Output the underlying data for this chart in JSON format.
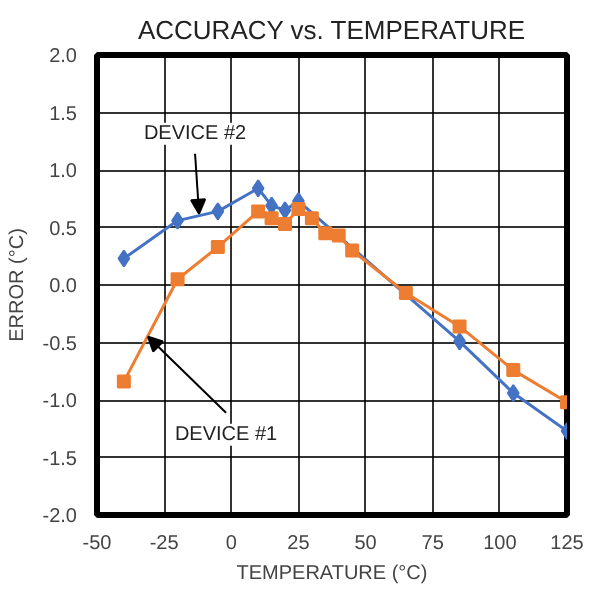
{
  "chart_data": {
    "type": "line",
    "title": "ACCURACY vs. TEMPERATURE",
    "xlabel": "TEMPERATURE (°C)",
    "ylabel": "ERROR (°C)",
    "xlim": [
      -50,
      125
    ],
    "xticks": [
      -50,
      -25,
      0,
      25,
      50,
      75,
      100,
      125
    ],
    "ylim": [
      -2,
      2
    ],
    "yticks": [
      {
        "value": -2,
        "label": "-2.0"
      },
      {
        "value": -1.5,
        "label": "-1.5"
      },
      {
        "value": -1,
        "label": "-1.0"
      },
      {
        "value": -0.5,
        "label": "-0.5"
      },
      {
        "value": 0,
        "label": "0.0"
      },
      {
        "value": 0.5,
        "label": "0.5"
      },
      {
        "value": 1,
        "label": "1.0"
      },
      {
        "value": 1.5,
        "label": "1.5"
      },
      {
        "value": 2,
        "label": "2.0"
      }
    ],
    "grid": true,
    "line_style": "solid",
    "series": [
      {
        "color": "#4472c4",
        "marker": "diamond",
        "x": [
          -40,
          -20,
          -5,
          10,
          15,
          20,
          25,
          85,
          105,
          125
        ],
        "values": [
          0.23,
          0.56,
          0.64,
          0.84,
          0.69,
          0.65,
          0.73,
          -0.49,
          -0.94,
          -1.27
        ]
      },
      {
        "color": "#ed7d31",
        "marker": "square",
        "x": [
          -40,
          -20,
          -5,
          10,
          15,
          20,
          25,
          30,
          35,
          40,
          45,
          65,
          85,
          105,
          125
        ],
        "values": [
          -0.84,
          0.05,
          0.33,
          0.64,
          0.58,
          0.53,
          0.66,
          0.58,
          0.45,
          0.43,
          0.3,
          -0.07,
          -0.36,
          -0.74,
          -1.02
        ]
      }
    ],
    "annotations": [
      {
        "text": "DEVICE #2",
        "x": -12,
        "y": 0.62
      },
      {
        "text": "DEVICE #1",
        "x": -31,
        "y": -0.45
      }
    ]
  }
}
